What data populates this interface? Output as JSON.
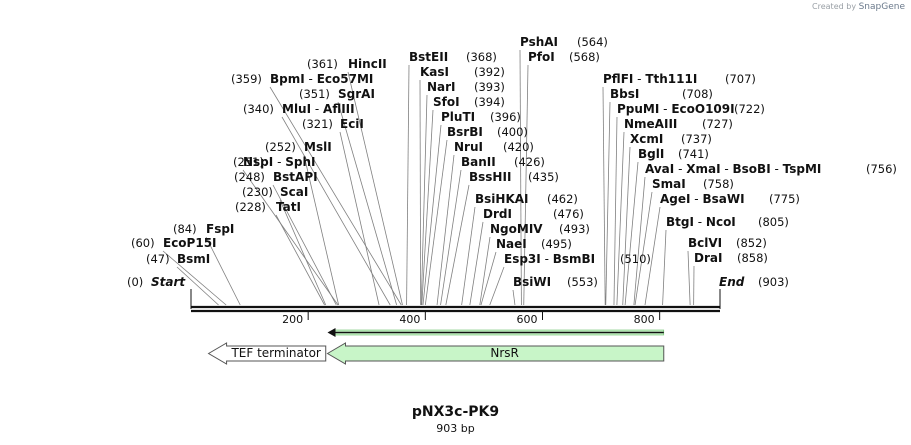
{
  "credit": {
    "prefix": "Created by",
    "brand": "SnapGene"
  },
  "title": "pNX3c-PK9",
  "size_label": "903 bp",
  "sequence": {
    "length": 903,
    "start_label": "Start",
    "end_label": "End",
    "start_pos": "(0)",
    "end_pos": "(903)"
  },
  "ticks": [
    "200",
    "400",
    "600",
    "800"
  ],
  "sites": [
    {
      "names": [
        "FspI"
      ],
      "pos": 84
    },
    {
      "names": [
        "EcoP15I"
      ],
      "pos": 60
    },
    {
      "names": [
        "BsmI"
      ],
      "pos": 47
    },
    {
      "names": [
        "MslI"
      ],
      "pos": 252
    },
    {
      "names": [
        "NspI",
        "SphI"
      ],
      "pos": 251
    },
    {
      "names": [
        "BstAPI"
      ],
      "pos": 248
    },
    {
      "names": [
        "ScaI"
      ],
      "pos": 230
    },
    {
      "names": [
        "TatI"
      ],
      "pos": 228
    },
    {
      "names": [
        "HincII"
      ],
      "pos": 361
    },
    {
      "names": [
        "BpmI",
        "Eco57MI"
      ],
      "pos": 359
    },
    {
      "names": [
        "SgrAI"
      ],
      "pos": 351
    },
    {
      "names": [
        "MluI",
        "AflIII"
      ],
      "pos": 340
    },
    {
      "names": [
        "EciI"
      ],
      "pos": 321
    },
    {
      "names": [
        "BstEII"
      ],
      "pos": 368
    },
    {
      "names": [
        "KasI"
      ],
      "pos": 392
    },
    {
      "names": [
        "NarI"
      ],
      "pos": 393
    },
    {
      "names": [
        "SfoI"
      ],
      "pos": 394
    },
    {
      "names": [
        "PluTI"
      ],
      "pos": 396
    },
    {
      "names": [
        "BsrBI"
      ],
      "pos": 400
    },
    {
      "names": [
        "NruI"
      ],
      "pos": 420
    },
    {
      "names": [
        "BanII"
      ],
      "pos": 426
    },
    {
      "names": [
        "BssHII"
      ],
      "pos": 435
    },
    {
      "names": [
        "BsiHKAI"
      ],
      "pos": 462
    },
    {
      "names": [
        "DrdI"
      ],
      "pos": 476
    },
    {
      "names": [
        "NgoMIV"
      ],
      "pos": 493
    },
    {
      "names": [
        "NaeI"
      ],
      "pos": 495
    },
    {
      "names": [
        "Esp3I",
        "BsmBI"
      ],
      "pos": 510
    },
    {
      "names": [
        "BsiWI"
      ],
      "pos": 553
    },
    {
      "names": [
        "PshAI"
      ],
      "pos": 564
    },
    {
      "names": [
        "PfoI"
      ],
      "pos": 568
    },
    {
      "names": [
        "PflFI",
        "Tth111I"
      ],
      "pos": 707
    },
    {
      "names": [
        "BbsI"
      ],
      "pos": 708
    },
    {
      "names": [
        "PpuMI",
        "EcoO109I"
      ],
      "pos": 722
    },
    {
      "names": [
        "NmeAIII"
      ],
      "pos": 727
    },
    {
      "names": [
        "XcmI"
      ],
      "pos": 737
    },
    {
      "names": [
        "BglI"
      ],
      "pos": 741
    },
    {
      "names": [
        "AvaI",
        "XmaI",
        "BsoBI",
        "TspMI"
      ],
      "pos": 756
    },
    {
      "names": [
        "SmaI"
      ],
      "pos": 758
    },
    {
      "names": [
        "AgeI",
        "BsaWI"
      ],
      "pos": 775
    },
    {
      "names": [
        "BtgI",
        "NcoI"
      ],
      "pos": 805
    },
    {
      "names": [
        "BclVI"
      ],
      "pos": 852
    },
    {
      "names": [
        "DraI"
      ],
      "pos": 858
    }
  ],
  "features": [
    {
      "name": "TEF terminator",
      "start": 30,
      "end": 230,
      "direction": "reverse",
      "color": "#ffffff"
    },
    {
      "name": "NrsR",
      "start": 233,
      "end": 807,
      "direction": "reverse",
      "color": "#c8f5c8"
    }
  ],
  "orf": {
    "start": 233,
    "end": 807,
    "direction": "reverse",
    "color": "#c8f5c8"
  }
}
